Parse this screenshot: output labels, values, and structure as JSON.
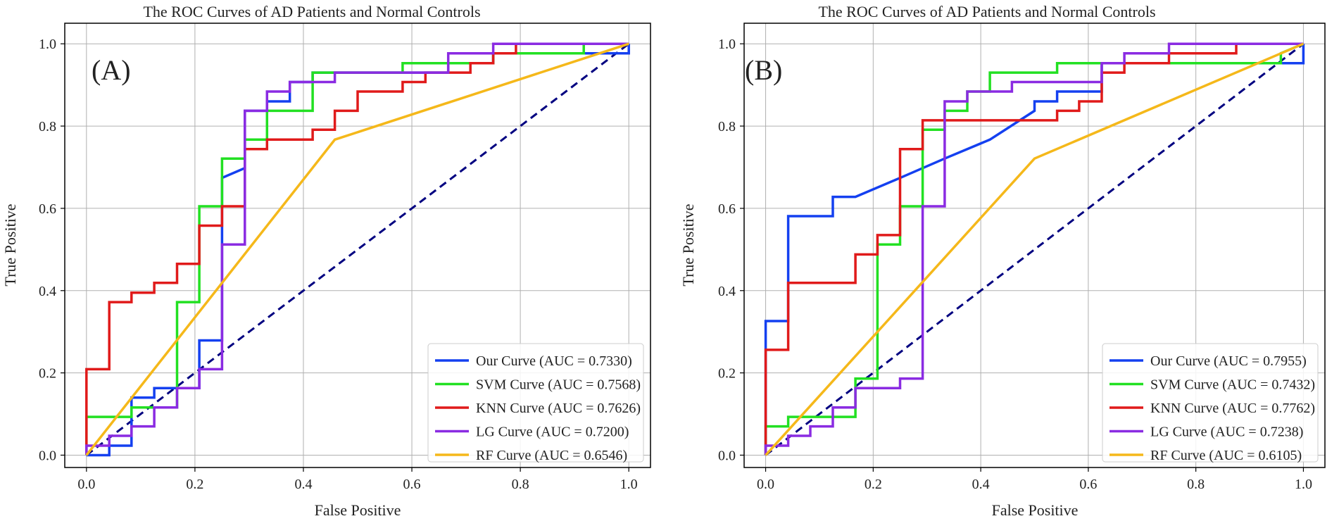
{
  "chart_data": [
    {
      "type": "line",
      "title": "The ROC Curves of AD Patients and Normal Controls",
      "panel_label": "(A)",
      "xlabel": "False Positive",
      "ylabel": "True Positive",
      "xlim": [
        -0.04,
        1.04
      ],
      "ylim": [
        -0.03,
        1.05
      ],
      "xticks": [
        "0.0",
        "0.2",
        "0.4",
        "0.6",
        "0.8",
        "1.0"
      ],
      "yticks": [
        "0.0",
        "0.2",
        "0.4",
        "0.6",
        "0.8",
        "1.0"
      ],
      "grid": true,
      "legend": "bottom-right",
      "diagonal": {
        "color": "#000080",
        "style": "dashed"
      },
      "series": [
        {
          "name": "Our Curve",
          "legend_label": "Our Curve (AUC = 0.7330)",
          "color": "#1440f0",
          "x": [
            0,
            0.042,
            0.042,
            0.083,
            0.083,
            0.125,
            0.125,
            0.167,
            0.167,
            0.208,
            0.208,
            0.25,
            0.25,
            0.25,
            0.292,
            0.292,
            0.333,
            0.333,
            0.375,
            0.375,
            0.417,
            0.417,
            0.583,
            0.583,
            0.667,
            0.667,
            0.75,
            0.75,
            1.0,
            1.0
          ],
          "y": [
            0,
            0,
            0.023,
            0.023,
            0.14,
            0.14,
            0.163,
            0.163,
            0.163,
            0.163,
            0.279,
            0.279,
            0.372,
            0.674,
            0.698,
            0.837,
            0.837,
            0.86,
            0.86,
            0.907,
            0.907,
            0.93,
            0.93,
            0.93,
            0.93,
            0.953,
            0.953,
            0.977,
            0.977,
            1.0
          ]
        },
        {
          "name": "SVM Curve",
          "legend_label": "SVM Curve (AUC = 0.7568)",
          "color": "#22e022",
          "x": [
            0,
            0,
            0.083,
            0.083,
            0.167,
            0.167,
            0.208,
            0.208,
            0.25,
            0.25,
            0.292,
            0.292,
            0.333,
            0.333,
            0.417,
            0.417,
            0.583,
            0.583,
            0.75,
            0.75,
            0.917,
            0.917,
            1.0
          ],
          "y": [
            0,
            0.093,
            0.093,
            0.116,
            0.116,
            0.372,
            0.372,
            0.605,
            0.605,
            0.721,
            0.721,
            0.767,
            0.767,
            0.837,
            0.837,
            0.93,
            0.93,
            0.953,
            0.953,
            0.977,
            0.977,
            1.0,
            1.0
          ]
        },
        {
          "name": "KNN Curve",
          "legend_label": "KNN Curve (AUC = 0.7626)",
          "color": "#e01a1a",
          "x": [
            0,
            0,
            0.042,
            0.042,
            0.083,
            0.083,
            0.125,
            0.125,
            0.167,
            0.167,
            0.208,
            0.208,
            0.25,
            0.25,
            0.292,
            0.292,
            0.333,
            0.333,
            0.417,
            0.417,
            0.458,
            0.458,
            0.5,
            0.5,
            0.583,
            0.583,
            0.625,
            0.625,
            0.708,
            0.708,
            0.75,
            0.75,
            0.792,
            0.792,
            1.0
          ],
          "y": [
            0,
            0.209,
            0.209,
            0.372,
            0.372,
            0.395,
            0.395,
            0.419,
            0.419,
            0.465,
            0.465,
            0.558,
            0.558,
            0.605,
            0.605,
            0.744,
            0.744,
            0.767,
            0.767,
            0.791,
            0.791,
            0.837,
            0.837,
            0.884,
            0.884,
            0.907,
            0.907,
            0.93,
            0.93,
            0.953,
            0.953,
            0.977,
            0.977,
            1.0,
            1.0
          ]
        },
        {
          "name": "LG Curve",
          "legend_label": "LG Curve (AUC = 0.7200)",
          "color": "#8a2be2",
          "x": [
            0,
            0,
            0.042,
            0.042,
            0.083,
            0.083,
            0.125,
            0.125,
            0.167,
            0.167,
            0.208,
            0.208,
            0.25,
            0.25,
            0.292,
            0.292,
            0.333,
            0.333,
            0.375,
            0.375,
            0.458,
            0.458,
            0.667,
            0.667,
            0.75,
            0.75,
            1.0
          ],
          "y": [
            0,
            0.023,
            0.023,
            0.047,
            0.047,
            0.07,
            0.07,
            0.116,
            0.116,
            0.163,
            0.163,
            0.209,
            0.209,
            0.512,
            0.512,
            0.837,
            0.837,
            0.884,
            0.884,
            0.907,
            0.907,
            0.93,
            0.93,
            0.977,
            0.977,
            1.0,
            1.0
          ]
        },
        {
          "name": "RF Curve",
          "legend_label": "RF Curve (AUC = 0.6546)",
          "color": "#f5b81a",
          "x": [
            0,
            0.458,
            1.0
          ],
          "y": [
            0,
            0.767,
            1.0
          ]
        }
      ]
    },
    {
      "type": "line",
      "title": "The ROC Curves of AD Patients and Normal Controls",
      "panel_label": "(B)",
      "xlabel": "False Positive",
      "ylabel": "True Positive",
      "xlim": [
        -0.04,
        1.04
      ],
      "ylim": [
        -0.03,
        1.05
      ],
      "xticks": [
        "0.0",
        "0.2",
        "0.4",
        "0.6",
        "0.8",
        "1.0"
      ],
      "yticks": [
        "0.0",
        "0.2",
        "0.4",
        "0.6",
        "0.8",
        "1.0"
      ],
      "grid": true,
      "legend": "bottom-right",
      "diagonal": {
        "color": "#000080",
        "style": "dashed"
      },
      "series": [
        {
          "name": "Our Curve",
          "legend_label": "Our Curve (AUC = 0.7955)",
          "color": "#1440f0",
          "x": [
            0,
            0,
            0.042,
            0.042,
            0.125,
            0.125,
            0.167,
            0.25,
            0.333,
            0.417,
            0.5,
            0.5,
            0.542,
            0.542,
            0.625,
            0.625,
            1.0,
            1.0
          ],
          "y": [
            0,
            0.326,
            0.326,
            0.581,
            0.581,
            0.628,
            0.628,
            0.674,
            0.721,
            0.767,
            0.837,
            0.86,
            0.86,
            0.884,
            0.884,
            0.953,
            0.953,
            1.0
          ]
        },
        {
          "name": "SVM Curve",
          "legend_label": "SVM Curve (AUC = 0.7432)",
          "color": "#22e022",
          "x": [
            0,
            0,
            0.042,
            0.042,
            0.167,
            0.167,
            0.208,
            0.208,
            0.25,
            0.25,
            0.292,
            0.292,
            0.333,
            0.333,
            0.375,
            0.375,
            0.417,
            0.417,
            0.542,
            0.542,
            0.958,
            0.958,
            1.0
          ],
          "y": [
            0,
            0.07,
            0.07,
            0.093,
            0.093,
            0.186,
            0.186,
            0.512,
            0.512,
            0.605,
            0.605,
            0.791,
            0.791,
            0.837,
            0.837,
            0.884,
            0.884,
            0.93,
            0.93,
            0.953,
            0.953,
            0.977,
            1.0
          ]
        },
        {
          "name": "KNN Curve",
          "legend_label": "KNN Curve (AUC = 0.7762)",
          "color": "#e01a1a",
          "x": [
            0,
            0,
            0.042,
            0.042,
            0.167,
            0.167,
            0.208,
            0.208,
            0.25,
            0.25,
            0.292,
            0.292,
            0.542,
            0.542,
            0.583,
            0.583,
            0.625,
            0.625,
            0.667,
            0.667,
            0.75,
            0.75,
            0.875,
            0.875,
            1.0
          ],
          "y": [
            0,
            0.256,
            0.256,
            0.419,
            0.419,
            0.488,
            0.488,
            0.535,
            0.535,
            0.744,
            0.744,
            0.814,
            0.814,
            0.837,
            0.837,
            0.86,
            0.86,
            0.93,
            0.93,
            0.953,
            0.953,
            0.977,
            0.977,
            1.0,
            1.0
          ]
        },
        {
          "name": "LG Curve",
          "legend_label": "LG Curve (AUC = 0.7238)",
          "color": "#8a2be2",
          "x": [
            0,
            0,
            0.042,
            0.042,
            0.083,
            0.083,
            0.125,
            0.125,
            0.167,
            0.167,
            0.25,
            0.25,
            0.292,
            0.292,
            0.333,
            0.333,
            0.375,
            0.375,
            0.458,
            0.458,
            0.625,
            0.625,
            0.667,
            0.667,
            0.75,
            0.75,
            1.0
          ],
          "y": [
            0,
            0.023,
            0.023,
            0.047,
            0.047,
            0.07,
            0.07,
            0.116,
            0.116,
            0.163,
            0.163,
            0.186,
            0.186,
            0.605,
            0.605,
            0.86,
            0.86,
            0.884,
            0.884,
            0.907,
            0.907,
            0.953,
            0.953,
            0.977,
            0.977,
            1.0,
            1.0
          ]
        },
        {
          "name": "RF Curve",
          "legend_label": "RF Curve (AUC = 0.6105)",
          "color": "#f5b81a",
          "x": [
            0,
            0.5,
            1.0
          ],
          "y": [
            0,
            0.721,
            1.0
          ]
        }
      ]
    }
  ]
}
